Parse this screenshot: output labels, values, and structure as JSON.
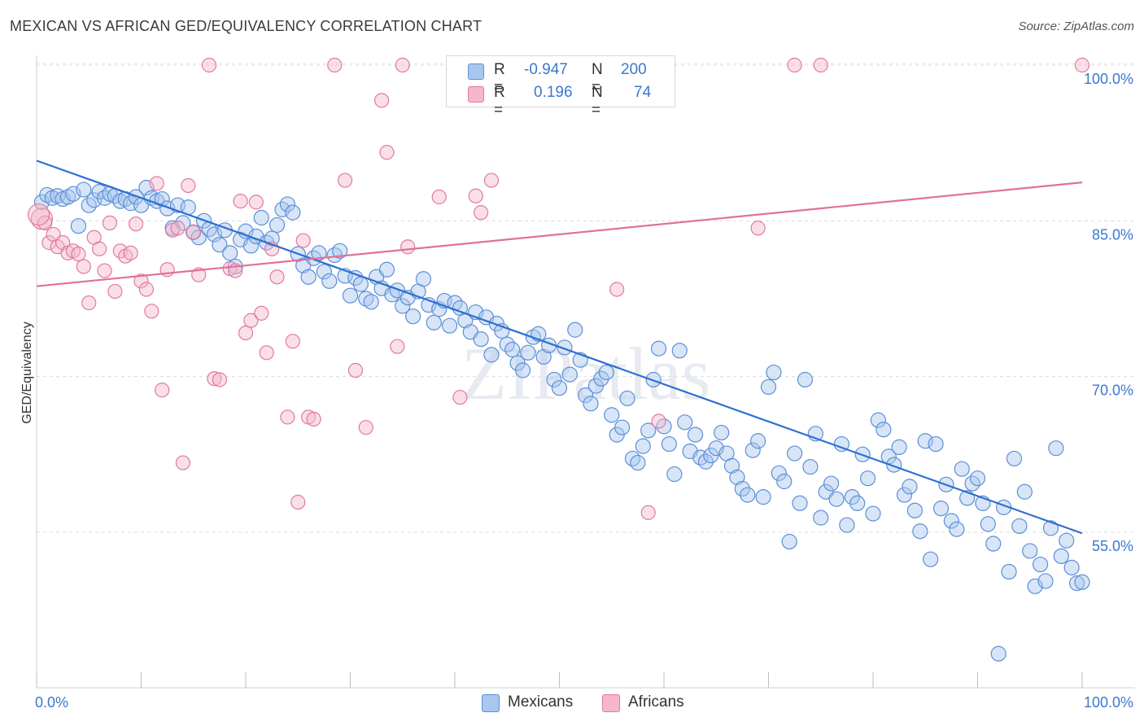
{
  "title": "MEXICAN VS AFRICAN GED/EQUIVALENCY CORRELATION CHART",
  "source": "Source: ZipAtlas.com",
  "watermark": "ZIPatlas",
  "colors": {
    "mexicans": "#5b8fd8",
    "mexicans_fill": "#a9c6ee",
    "africans": "#e07aa0",
    "africans_fill": "#f5b7cb",
    "blue_line": "#2e6fd0",
    "pink_line": "#e0709a",
    "axis_label": "#3b78d0"
  },
  "legend": {
    "rows": [
      {
        "r_label": "R =",
        "r_value": "-0.947",
        "n_label": "N =",
        "n_value": "200"
      },
      {
        "r_label": "R =",
        "r_value": "0.196",
        "n_label": "N =",
        "n_value": "74"
      }
    ]
  },
  "bottom_legend": {
    "mexicans": "Mexicans",
    "africans": "Africans"
  },
  "chart_data": {
    "type": "scatter",
    "title": "MEXICAN VS AFRICAN GED/EQUIVALENCY CORRELATION CHART",
    "xlabel": "",
    "ylabel": "GED/Equivalency",
    "xlim": [
      0,
      100
    ],
    "ylim": [
      40,
      102
    ],
    "x_tick_labels": {
      "left": "0.0%",
      "right": "100.0%"
    },
    "y_ticks": [
      {
        "value": 100,
        "label": "100.0%"
      },
      {
        "value": 85,
        "label": "85.0%"
      },
      {
        "value": 70,
        "label": "70.0%"
      },
      {
        "value": 55,
        "label": "55.0%"
      }
    ],
    "grid": "horizontal dashed",
    "legend_placement": "top-center",
    "series": [
      {
        "name": "Mexicans",
        "r": -0.947,
        "n": 200,
        "trend": {
          "x": [
            0,
            100
          ],
          "y": [
            90.8,
            54.9
          ]
        },
        "points": [
          [
            0.5,
            86.8
          ],
          [
            1,
            87.5
          ],
          [
            1.5,
            87.2
          ],
          [
            2,
            87.4
          ],
          [
            2.5,
            87.1
          ],
          [
            3,
            87.3
          ],
          [
            3.5,
            87.6
          ],
          [
            4,
            84.5
          ],
          [
            4.5,
            88
          ],
          [
            5,
            86.5
          ],
          [
            5.5,
            87
          ],
          [
            6,
            87.8
          ],
          [
            6.5,
            87.2
          ],
          [
            7,
            87.6
          ],
          [
            7.5,
            87.4
          ],
          [
            8,
            86.9
          ],
          [
            8.5,
            87.1
          ],
          [
            9,
            86.7
          ],
          [
            9.5,
            87.3
          ],
          [
            10,
            86.5
          ],
          [
            10.5,
            88.2
          ],
          [
            11,
            87.2
          ],
          [
            11.5,
            86.9
          ],
          [
            12,
            87.1
          ],
          [
            12.5,
            86.2
          ],
          [
            13,
            84.3
          ],
          [
            13.5,
            86.5
          ],
          [
            14,
            84.8
          ],
          [
            14.5,
            86.3
          ],
          [
            15,
            83.9
          ],
          [
            15.5,
            83.4
          ],
          [
            16,
            85
          ],
          [
            16.5,
            84.2
          ],
          [
            17,
            83.7
          ],
          [
            17.5,
            82.7
          ],
          [
            18,
            84.1
          ],
          [
            18.5,
            81.9
          ],
          [
            19,
            80.6
          ],
          [
            19.5,
            83.2
          ],
          [
            20,
            84
          ],
          [
            20.5,
            82.6
          ],
          [
            21,
            83.5
          ],
          [
            21.5,
            85.3
          ],
          [
            22,
            82.9
          ],
          [
            22.5,
            83.3
          ],
          [
            23,
            84.6
          ],
          [
            23.5,
            86.1
          ],
          [
            24,
            86.6
          ],
          [
            24.5,
            85.8
          ],
          [
            25,
            81.8
          ],
          [
            25.5,
            80.7
          ],
          [
            26,
            79.6
          ],
          [
            26.5,
            81.4
          ],
          [
            27,
            81.9
          ],
          [
            27.5,
            80.1
          ],
          [
            28,
            79.2
          ],
          [
            28.5,
            81.7
          ],
          [
            29,
            82.1
          ],
          [
            29.5,
            79.7
          ],
          [
            30,
            77.8
          ],
          [
            30.5,
            79.5
          ],
          [
            31,
            78.9
          ],
          [
            31.5,
            77.5
          ],
          [
            32,
            77.2
          ],
          [
            32.5,
            79.6
          ],
          [
            33,
            78.5
          ],
          [
            33.5,
            80.3
          ],
          [
            34,
            77.9
          ],
          [
            34.5,
            78.3
          ],
          [
            35,
            76.8
          ],
          [
            35.5,
            77.6
          ],
          [
            36,
            75.8
          ],
          [
            36.5,
            78.2
          ],
          [
            37,
            79.4
          ],
          [
            37.5,
            76.9
          ],
          [
            38,
            75.2
          ],
          [
            38.5,
            76.5
          ],
          [
            39,
            77.3
          ],
          [
            39.5,
            74.9
          ],
          [
            40,
            77.1
          ],
          [
            40.5,
            76.6
          ],
          [
            41,
            75.4
          ],
          [
            41.5,
            74.3
          ],
          [
            42,
            76.2
          ],
          [
            42.5,
            73.6
          ],
          [
            43,
            75.7
          ],
          [
            43.5,
            72.1
          ],
          [
            44,
            75.1
          ],
          [
            44.5,
            74.4
          ],
          [
            45,
            73.1
          ],
          [
            45.5,
            72.6
          ],
          [
            46,
            71.3
          ],
          [
            46.5,
            70.6
          ],
          [
            47,
            72.3
          ],
          [
            47.5,
            73.8
          ],
          [
            48,
            74.1
          ],
          [
            48.5,
            71.9
          ],
          [
            49,
            73
          ],
          [
            49.5,
            69.7
          ],
          [
            50,
            68.9
          ],
          [
            50.5,
            72.8
          ],
          [
            51,
            70.2
          ],
          [
            51.5,
            74.5
          ],
          [
            52,
            71.6
          ],
          [
            52.5,
            68.2
          ],
          [
            53,
            67.4
          ],
          [
            53.5,
            69.1
          ],
          [
            54,
            69.8
          ],
          [
            54.5,
            70.4
          ],
          [
            55,
            66.3
          ],
          [
            55.5,
            64.4
          ],
          [
            56,
            65.1
          ],
          [
            56.5,
            67.9
          ],
          [
            57,
            62.1
          ],
          [
            57.5,
            61.7
          ],
          [
            58,
            63.3
          ],
          [
            58.5,
            64.8
          ],
          [
            59,
            69.7
          ],
          [
            59.5,
            72.7
          ],
          [
            60,
            65.2
          ],
          [
            60.5,
            63.5
          ],
          [
            61,
            60.6
          ],
          [
            61.5,
            72.5
          ],
          [
            62,
            65.6
          ],
          [
            62.5,
            62.8
          ],
          [
            63,
            64.4
          ],
          [
            63.5,
            62.2
          ],
          [
            64,
            61.8
          ],
          [
            64.5,
            62.4
          ],
          [
            65,
            63.1
          ],
          [
            65.5,
            64.6
          ],
          [
            66,
            62.6
          ],
          [
            66.5,
            61.4
          ],
          [
            67,
            60.3
          ],
          [
            67.5,
            59.2
          ],
          [
            68,
            58.6
          ],
          [
            68.5,
            62.9
          ],
          [
            69,
            63.8
          ],
          [
            69.5,
            58.4
          ],
          [
            70,
            69
          ],
          [
            70.5,
            70.4
          ],
          [
            71,
            60.7
          ],
          [
            71.5,
            59.9
          ],
          [
            72,
            54.1
          ],
          [
            72.5,
            62.6
          ],
          [
            73,
            57.8
          ],
          [
            73.5,
            69.7
          ],
          [
            74,
            61.3
          ],
          [
            74.5,
            64.5
          ],
          [
            75,
            56.4
          ],
          [
            75.5,
            58.9
          ],
          [
            76,
            59.7
          ],
          [
            76.5,
            58.2
          ],
          [
            77,
            63.5
          ],
          [
            77.5,
            55.7
          ],
          [
            78,
            58.4
          ],
          [
            78.5,
            57.8
          ],
          [
            79,
            62.5
          ],
          [
            79.5,
            60.2
          ],
          [
            80,
            56.8
          ],
          [
            80.5,
            65.8
          ],
          [
            81,
            64.9
          ],
          [
            81.5,
            62.3
          ],
          [
            82,
            61.5
          ],
          [
            82.5,
            63.2
          ],
          [
            83,
            58.6
          ],
          [
            83.5,
            59.4
          ],
          [
            84,
            57.1
          ],
          [
            84.5,
            55.1
          ],
          [
            85,
            63.8
          ],
          [
            85.5,
            52.4
          ],
          [
            86,
            63.5
          ],
          [
            86.5,
            57.3
          ],
          [
            87,
            59.6
          ],
          [
            87.5,
            56.1
          ],
          [
            88,
            55.3
          ],
          [
            88.5,
            61.1
          ],
          [
            89,
            58.3
          ],
          [
            89.5,
            59.7
          ],
          [
            90,
            60.2
          ],
          [
            90.5,
            57.8
          ],
          [
            91,
            55.8
          ],
          [
            91.5,
            53.9
          ],
          [
            92,
            43.3
          ],
          [
            92.5,
            57.4
          ],
          [
            93,
            51.2
          ],
          [
            93.5,
            62.1
          ],
          [
            94,
            55.6
          ],
          [
            94.5,
            58.9
          ],
          [
            95,
            53.2
          ],
          [
            95.5,
            49.8
          ],
          [
            96,
            51.9
          ],
          [
            96.5,
            50.3
          ],
          [
            97,
            55.4
          ],
          [
            97.5,
            63.1
          ],
          [
            98,
            52.7
          ],
          [
            98.5,
            54.2
          ],
          [
            99,
            51.6
          ],
          [
            99.5,
            50.1
          ],
          [
            100,
            50.2
          ]
        ]
      },
      {
        "name": "Africans",
        "r": 0.196,
        "n": 74,
        "trend": {
          "x": [
            0,
            100
          ],
          "y": [
            78.7,
            88.7
          ]
        },
        "points": [
          [
            0.5,
            85.2
          ],
          [
            0.8,
            84.8
          ],
          [
            1.2,
            82.9
          ],
          [
            1.6,
            83.7
          ],
          [
            2.0,
            82.5
          ],
          [
            2.5,
            82.9
          ],
          [
            3.0,
            81.9
          ],
          [
            3.5,
            82.1
          ],
          [
            4.0,
            81.8
          ],
          [
            4.5,
            80.6
          ],
          [
            5.0,
            77.1
          ],
          [
            5.5,
            83.4
          ],
          [
            6.0,
            82.3
          ],
          [
            6.5,
            80.2
          ],
          [
            7.0,
            84.8
          ],
          [
            7.5,
            78.2
          ],
          [
            8.0,
            82.1
          ],
          [
            8.5,
            81.6
          ],
          [
            9.0,
            81.9
          ],
          [
            9.5,
            84.7
          ],
          [
            10.0,
            79.2
          ],
          [
            10.5,
            78.4
          ],
          [
            11.0,
            76.3
          ],
          [
            11.5,
            88.6
          ],
          [
            12.0,
            68.7
          ],
          [
            12.5,
            80.3
          ],
          [
            13.0,
            84.1
          ],
          [
            13.5,
            84.3
          ],
          [
            14.0,
            61.7
          ],
          [
            14.5,
            88.4
          ],
          [
            15.0,
            83.9
          ],
          [
            15.5,
            79.8
          ],
          [
            16.5,
            100
          ],
          [
            17.0,
            69.8
          ],
          [
            17.5,
            69.7
          ],
          [
            18.5,
            80.4
          ],
          [
            19.0,
            80.2
          ],
          [
            19.5,
            86.9
          ],
          [
            20.0,
            74.2
          ],
          [
            20.5,
            75.4
          ],
          [
            21.0,
            86.8
          ],
          [
            21.5,
            76.1
          ],
          [
            22.0,
            72.3
          ],
          [
            22.5,
            82.3
          ],
          [
            23.0,
            79.6
          ],
          [
            24.0,
            66.1
          ],
          [
            24.5,
            73.4
          ],
          [
            25.0,
            57.9
          ],
          [
            25.5,
            83.1
          ],
          [
            26.0,
            66.1
          ],
          [
            26.5,
            65.9
          ],
          [
            28.5,
            100
          ],
          [
            29.5,
            88.9
          ],
          [
            30.5,
            70.6
          ],
          [
            31.5,
            65.1
          ],
          [
            33,
            96.6
          ],
          [
            33.5,
            91.6
          ],
          [
            34.5,
            72.9
          ],
          [
            35,
            100
          ],
          [
            35.5,
            82.5
          ],
          [
            38.5,
            87.3
          ],
          [
            40.5,
            68
          ],
          [
            42.0,
            87.4
          ],
          [
            42.5,
            85.8
          ],
          [
            43.5,
            88.9
          ],
          [
            52.5,
            100
          ],
          [
            55.5,
            78.4
          ],
          [
            58.5,
            56.9
          ],
          [
            59.5,
            65.7
          ],
          [
            69,
            84.3
          ],
          [
            72.5,
            100
          ],
          [
            75,
            100
          ],
          [
            100,
            100
          ],
          [
            0.2,
            85.6
          ]
        ]
      }
    ]
  }
}
